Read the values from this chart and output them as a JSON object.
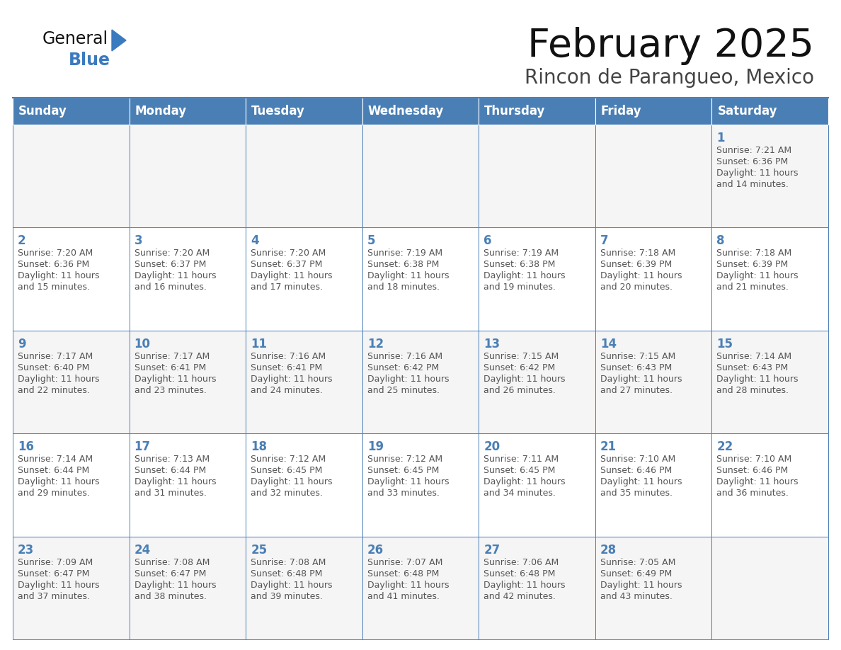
{
  "title": "February 2025",
  "subtitle": "Rincon de Parangueo, Mexico",
  "days_of_week": [
    "Sunday",
    "Monday",
    "Tuesday",
    "Wednesday",
    "Thursday",
    "Friday",
    "Saturday"
  ],
  "header_bg": "#4a7fb5",
  "header_text_color": "#ffffff",
  "cell_bg_odd": "#f5f5f5",
  "cell_bg_even": "#ffffff",
  "grid_line_color": "#4a7fb5",
  "day_num_color": "#4a7fb5",
  "text_color": "#555555",
  "title_color": "#111111",
  "subtitle_color": "#444444",
  "logo_general_color": "#111111",
  "logo_blue_color": "#3a7abf",
  "calendar_data": [
    [
      {
        "day": null,
        "sunrise": null,
        "sunset": null,
        "daylight_min": null
      },
      {
        "day": null,
        "sunrise": null,
        "sunset": null,
        "daylight_min": null
      },
      {
        "day": null,
        "sunrise": null,
        "sunset": null,
        "daylight_min": null
      },
      {
        "day": null,
        "sunrise": null,
        "sunset": null,
        "daylight_min": null
      },
      {
        "day": null,
        "sunrise": null,
        "sunset": null,
        "daylight_min": null
      },
      {
        "day": null,
        "sunrise": null,
        "sunset": null,
        "daylight_min": null
      },
      {
        "day": 1,
        "sunrise": "7:21 AM",
        "sunset": "6:36 PM",
        "daylight_min": 14
      }
    ],
    [
      {
        "day": 2,
        "sunrise": "7:20 AM",
        "sunset": "6:36 PM",
        "daylight_min": 15
      },
      {
        "day": 3,
        "sunrise": "7:20 AM",
        "sunset": "6:37 PM",
        "daylight_min": 16
      },
      {
        "day": 4,
        "sunrise": "7:20 AM",
        "sunset": "6:37 PM",
        "daylight_min": 17
      },
      {
        "day": 5,
        "sunrise": "7:19 AM",
        "sunset": "6:38 PM",
        "daylight_min": 18
      },
      {
        "day": 6,
        "sunrise": "7:19 AM",
        "sunset": "6:38 PM",
        "daylight_min": 19
      },
      {
        "day": 7,
        "sunrise": "7:18 AM",
        "sunset": "6:39 PM",
        "daylight_min": 20
      },
      {
        "day": 8,
        "sunrise": "7:18 AM",
        "sunset": "6:39 PM",
        "daylight_min": 21
      }
    ],
    [
      {
        "day": 9,
        "sunrise": "7:17 AM",
        "sunset": "6:40 PM",
        "daylight_min": 22
      },
      {
        "day": 10,
        "sunrise": "7:17 AM",
        "sunset": "6:41 PM",
        "daylight_min": 23
      },
      {
        "day": 11,
        "sunrise": "7:16 AM",
        "sunset": "6:41 PM",
        "daylight_min": 24
      },
      {
        "day": 12,
        "sunrise": "7:16 AM",
        "sunset": "6:42 PM",
        "daylight_min": 25
      },
      {
        "day": 13,
        "sunrise": "7:15 AM",
        "sunset": "6:42 PM",
        "daylight_min": 26
      },
      {
        "day": 14,
        "sunrise": "7:15 AM",
        "sunset": "6:43 PM",
        "daylight_min": 27
      },
      {
        "day": 15,
        "sunrise": "7:14 AM",
        "sunset": "6:43 PM",
        "daylight_min": 28
      }
    ],
    [
      {
        "day": 16,
        "sunrise": "7:14 AM",
        "sunset": "6:44 PM",
        "daylight_min": 29
      },
      {
        "day": 17,
        "sunrise": "7:13 AM",
        "sunset": "6:44 PM",
        "daylight_min": 31
      },
      {
        "day": 18,
        "sunrise": "7:12 AM",
        "sunset": "6:45 PM",
        "daylight_min": 32
      },
      {
        "day": 19,
        "sunrise": "7:12 AM",
        "sunset": "6:45 PM",
        "daylight_min": 33
      },
      {
        "day": 20,
        "sunrise": "7:11 AM",
        "sunset": "6:45 PM",
        "daylight_min": 34
      },
      {
        "day": 21,
        "sunrise": "7:10 AM",
        "sunset": "6:46 PM",
        "daylight_min": 35
      },
      {
        "day": 22,
        "sunrise": "7:10 AM",
        "sunset": "6:46 PM",
        "daylight_min": 36
      }
    ],
    [
      {
        "day": 23,
        "sunrise": "7:09 AM",
        "sunset": "6:47 PM",
        "daylight_min": 37
      },
      {
        "day": 24,
        "sunrise": "7:08 AM",
        "sunset": "6:47 PM",
        "daylight_min": 38
      },
      {
        "day": 25,
        "sunrise": "7:08 AM",
        "sunset": "6:48 PM",
        "daylight_min": 39
      },
      {
        "day": 26,
        "sunrise": "7:07 AM",
        "sunset": "6:48 PM",
        "daylight_min": 41
      },
      {
        "day": 27,
        "sunrise": "7:06 AM",
        "sunset": "6:48 PM",
        "daylight_min": 42
      },
      {
        "day": 28,
        "sunrise": "7:05 AM",
        "sunset": "6:49 PM",
        "daylight_min": 43
      },
      {
        "day": null,
        "sunrise": null,
        "sunset": null,
        "daylight_min": null
      }
    ]
  ]
}
